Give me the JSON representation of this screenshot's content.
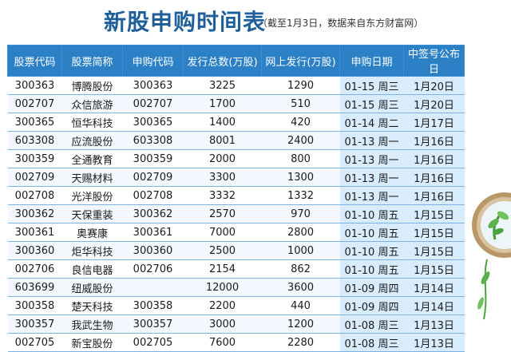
{
  "title": {
    "main": "新股申购时间表",
    "sub": "（截至1月3日，数据来自东方财富网）"
  },
  "table": {
    "headers": [
      "股票代码",
      "股票简称",
      "申购代码",
      "发行总数(万股)",
      "网上发行(万股)",
      "申购日期",
      "中签号公布日"
    ],
    "rows": [
      {
        "code": "300363",
        "name": "博腾股份",
        "sub_code": "300363",
        "total": "3225",
        "online": "1290",
        "date": "01-15 周三",
        "pub": "1月20日"
      },
      {
        "code": "002707",
        "name": "众信旅游",
        "sub_code": "002707",
        "total": "1700",
        "online": "510",
        "date": "01-15 周三",
        "pub": "1月20日"
      },
      {
        "code": "300365",
        "name": "恒华科技",
        "sub_code": "300365",
        "total": "1400",
        "online": "420",
        "date": "01-14 周二",
        "pub": "1月17日"
      },
      {
        "code": "603308",
        "name": "应流股份",
        "sub_code": "603308",
        "total": "8001",
        "online": "2400",
        "date": "01-13 周一",
        "pub": "1月16日"
      },
      {
        "code": "300359",
        "name": "全通教育",
        "sub_code": "300359",
        "total": "2000",
        "online": "800",
        "date": "01-13 周一",
        "pub": "1月16日"
      },
      {
        "code": "002709",
        "name": "天赐材料",
        "sub_code": "002709",
        "total": "3300",
        "online": "1300",
        "date": "01-13 周一",
        "pub": "1月16日"
      },
      {
        "code": "002708",
        "name": "光洋股份",
        "sub_code": "002708",
        "total": "3332",
        "online": "1332",
        "date": "01-13 周一",
        "pub": "1月16日"
      },
      {
        "code": "300362",
        "name": "天保重装",
        "sub_code": "300362",
        "total": "2570",
        "online": "970",
        "date": "01-10 周五",
        "pub": "1月15日"
      },
      {
        "code": "300361",
        "name": "奥赛康",
        "sub_code": "300361",
        "total": "7000",
        "online": "2800",
        "date": "01-10 周五",
        "pub": "1月15日"
      },
      {
        "code": "300360",
        "name": "炬华科技",
        "sub_code": "300360",
        "total": "2500",
        "online": "1000",
        "date": "01-10 周五",
        "pub": "1月15日"
      },
      {
        "code": "002706",
        "name": "良信电器",
        "sub_code": "002706",
        "total": "2154",
        "online": "862",
        "date": "01-10 周五",
        "pub": "1月15日"
      },
      {
        "code": "603699",
        "name": "纽威股份",
        "sub_code": "",
        "total": "12000",
        "online": "3600",
        "date": "01-09 周四",
        "pub": "1月14日"
      },
      {
        "code": "300358",
        "name": "楚天科技",
        "sub_code": "300358",
        "total": "2200",
        "online": "440",
        "date": "01-09 周四",
        "pub": "1月14日"
      },
      {
        "code": "300357",
        "name": "我武生物",
        "sub_code": "300357",
        "total": "3000",
        "online": "1200",
        "date": "01-08 周三",
        "pub": "1月13日"
      },
      {
        "code": "002705",
        "name": "新宝股份",
        "sub_code": "002705",
        "total": "7600",
        "online": "2280",
        "date": "01-08 周三",
        "pub": "1月13日"
      }
    ]
  },
  "colors": {
    "header_bg": "#2b80c6",
    "title_color": "#1f5f9a",
    "date_col_bg": "#d9ecfb"
  },
  "decoration": {
    "icon": "plant-globe-icon"
  }
}
